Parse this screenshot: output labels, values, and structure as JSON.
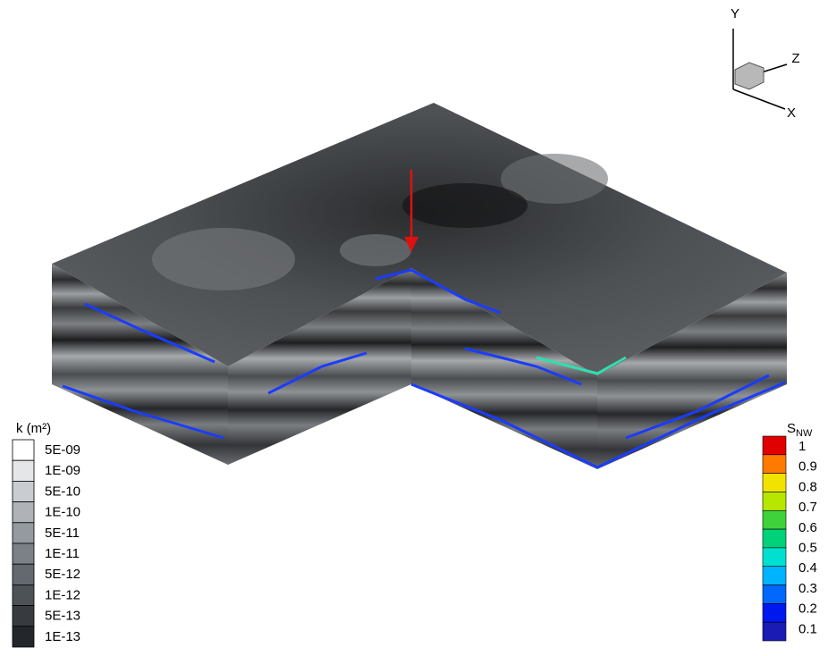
{
  "axes_triad": {
    "y": "Y",
    "z": "Z",
    "x": "X"
  },
  "permeability_legend": {
    "title": "k (m²)",
    "labels": [
      "5E-09",
      "1E-09",
      "5E-10",
      "1E-10",
      "5E-11",
      "1E-11",
      "5E-12",
      "1E-12",
      "5E-13",
      "1E-13"
    ],
    "colors": [
      "#ffffff",
      "#e4e6e8",
      "#c9ccd0",
      "#afb3b8",
      "#959aa0",
      "#7c8187",
      "#64696f",
      "#4d5257",
      "#373b40",
      "#23272b"
    ]
  },
  "saturation_legend": {
    "title": "S",
    "title_subscript": "NW",
    "labels": [
      1,
      0.9,
      0.8,
      0.7,
      0.6,
      0.5,
      0.4,
      0.3,
      0.2,
      0.1
    ],
    "colors": [
      "#e00000",
      "#ff7a00",
      "#f2e200",
      "#b7e600",
      "#3fd23a",
      "#00d27a",
      "#00e0d0",
      "#00b4ff",
      "#0068ff",
      "#0018f0",
      "#1a1ab4"
    ]
  }
}
